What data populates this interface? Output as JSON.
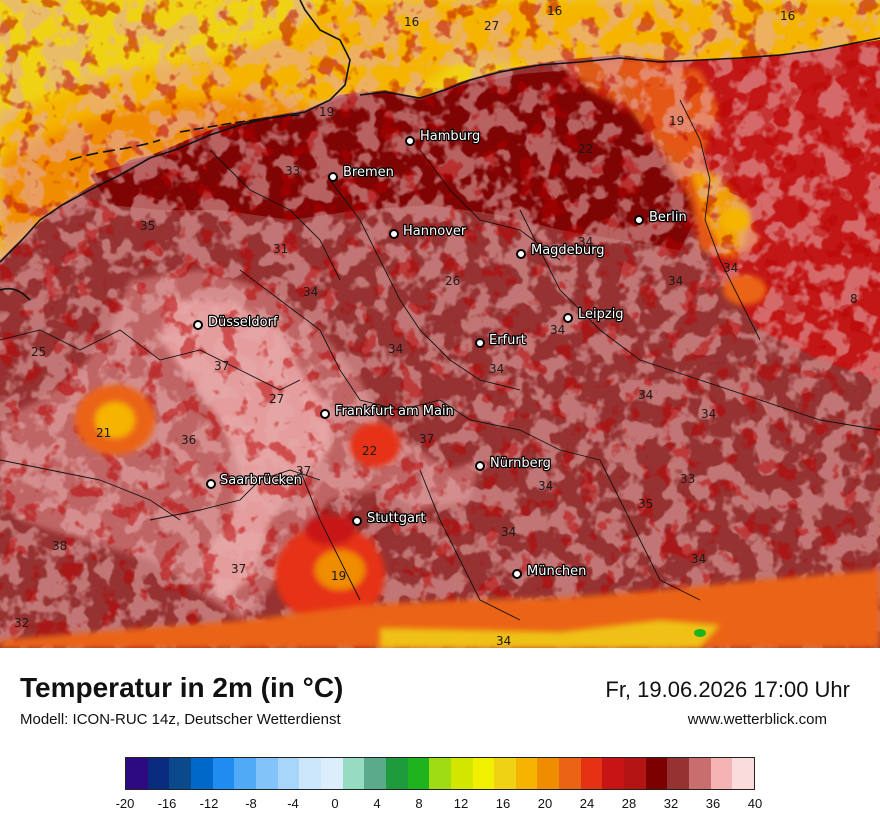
{
  "map": {
    "cities": [
      {
        "name": "Hamburg"
      },
      {
        "name": "Bremen"
      },
      {
        "name": "Hannover"
      },
      {
        "name": "Berlin"
      },
      {
        "name": "Magdeburg"
      },
      {
        "name": "Düsseldorf"
      },
      {
        "name": "Leipzig"
      },
      {
        "name": "Erfurt"
      },
      {
        "name": "Frankfurt am Main"
      },
      {
        "name": "Nürnberg"
      },
      {
        "name": "Saarbrücken"
      },
      {
        "name": "Stuttgart"
      },
      {
        "name": "München"
      }
    ],
    "values": [
      "16",
      "27",
      "16",
      "16",
      "19",
      "19",
      "22",
      "33",
      "35",
      "31",
      "34",
      "26",
      "34",
      "34",
      "34",
      "34",
      "34",
      "37",
      "27",
      "21",
      "36",
      "37",
      "22",
      "37",
      "38",
      "34",
      "34",
      "34",
      "33",
      "35",
      "34",
      "34",
      "38",
      "37",
      "19",
      "34",
      "32",
      "8",
      "34",
      "25"
    ]
  },
  "header": {
    "title": "Temperatur in 2m (in °C)",
    "subtitle": "Modell: ICON-RUC 14z, Deutscher Wetterdienst",
    "datetime": "Fr, 19.06.2026 17:00 Uhr",
    "website": "www.wetterblick.com"
  },
  "legend": {
    "colors": [
      "#2e0a82",
      "#0a2c7e",
      "#0a4a8c",
      "#0068c8",
      "#1e8cf0",
      "#50aaf5",
      "#82c3fa",
      "#a8d5fa",
      "#cce6fc",
      "#dceefc",
      "#96dcc3",
      "#5aaa8c",
      "#1e9b3c",
      "#1eb41e",
      "#a0dc14",
      "#d2e600",
      "#f0f000",
      "#f0d214",
      "#f5b400",
      "#f08c00",
      "#eb6414",
      "#e63214",
      "#c81414",
      "#b41414",
      "#7d0000",
      "#963232",
      "#c86e6e",
      "#f5b4b4",
      "#fadcdc"
    ],
    "ticks": [
      "-20",
      "-16",
      "-12",
      "-8",
      "-4",
      "0",
      "4",
      "8",
      "12",
      "16",
      "20",
      "24",
      "28",
      "32",
      "36",
      "40"
    ]
  }
}
